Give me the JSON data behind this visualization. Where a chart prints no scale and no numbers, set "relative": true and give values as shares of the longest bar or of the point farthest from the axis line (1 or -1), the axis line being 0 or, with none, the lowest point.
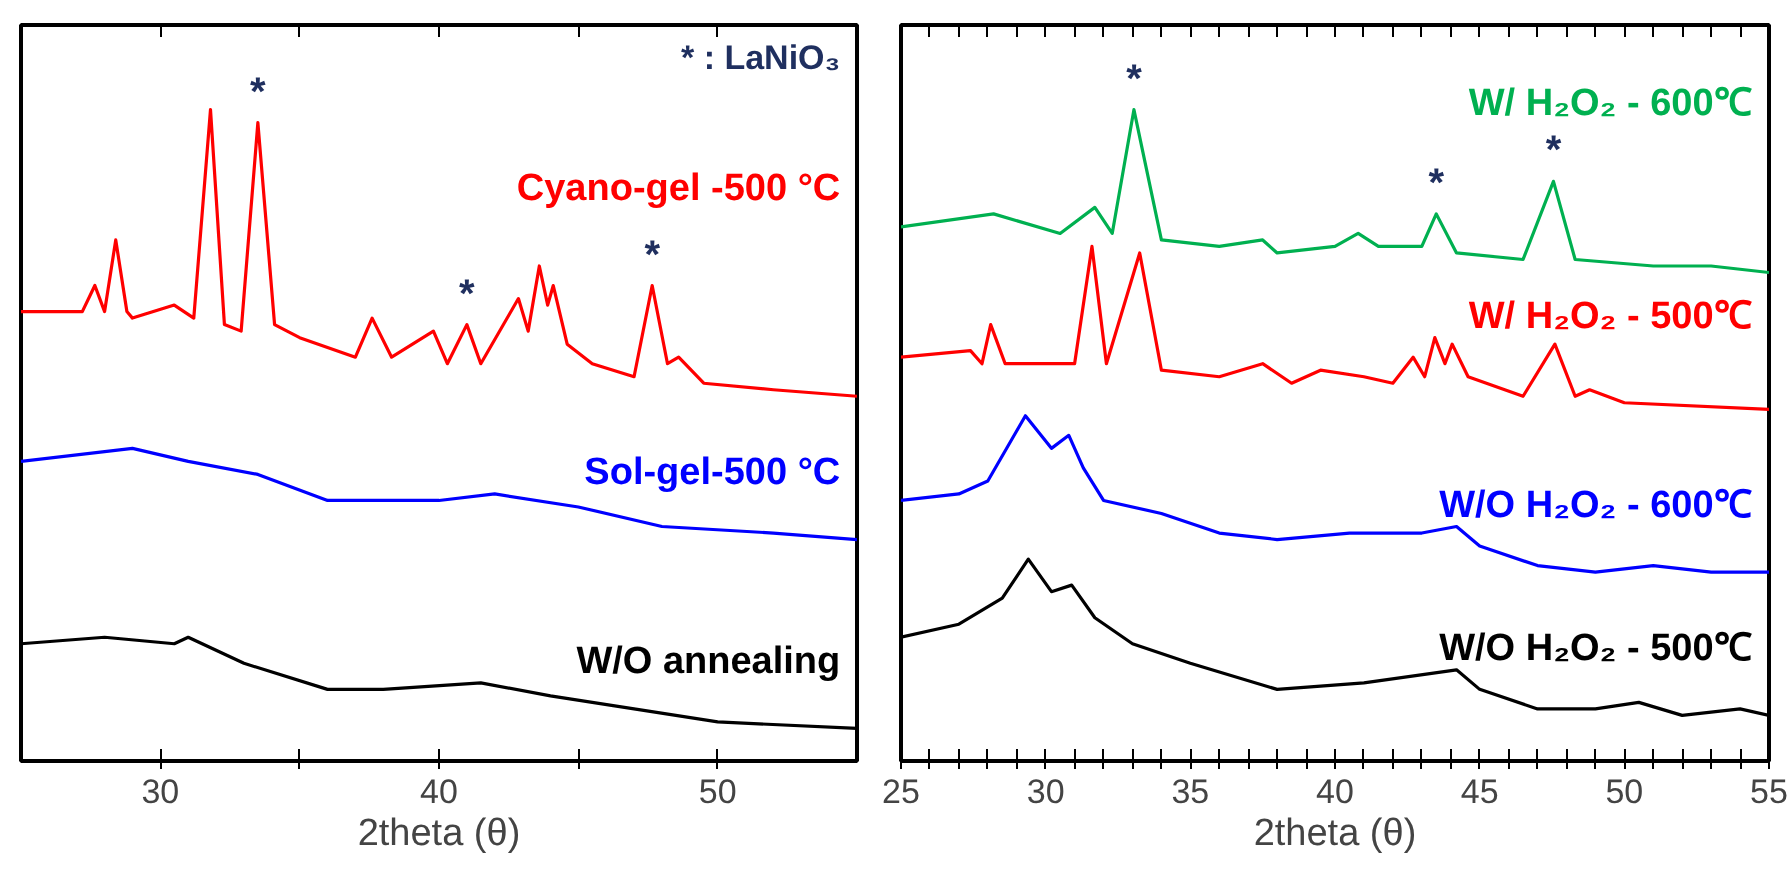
{
  "chart_data": [
    {
      "type": "line",
      "xlabel": "2theta (θ)",
      "relative": true,
      "xlim": [
        25,
        55
      ],
      "xticks": [
        30,
        {
          "value": 35,
          "label": null
        },
        40,
        {
          "value": 45,
          "label": null
        },
        50
      ],
      "tick_labels": "x",
      "grid": false,
      "annotations": [
        "* : LaNiO₃",
        {
          "text": "*",
          "x": 33.5,
          "y": 0.98
        },
        {
          "text": "*",
          "x": 41.0,
          "y": 0.67
        },
        {
          "text": "*",
          "x": 47.65,
          "y": 0.73
        }
      ],
      "series": [
        {
          "name": "Cyano-gel -500 °C",
          "color": "#ff0000",
          "x": [
            25,
            27.2,
            27.65,
            28.0,
            28.4,
            28.8,
            29.0,
            30.5,
            31.2,
            31.8,
            32.3,
            32.9,
            33.5,
            34.1,
            35,
            37,
            37.6,
            38.3,
            39.8,
            40.3,
            41.0,
            41.5,
            42.85,
            43.2,
            43.6,
            43.9,
            44.1,
            44.6,
            45.5,
            47,
            47.65,
            48.2,
            48.6,
            49.5,
            52,
            55
          ],
          "values": [
            0.69,
            0.69,
            0.73,
            0.69,
            0.8,
            0.69,
            0.68,
            0.7,
            0.68,
            1.0,
            0.67,
            0.66,
            0.98,
            0.67,
            0.65,
            0.62,
            0.68,
            0.62,
            0.66,
            0.61,
            0.67,
            0.61,
            0.71,
            0.66,
            0.76,
            0.7,
            0.73,
            0.64,
            0.61,
            0.59,
            0.73,
            0.61,
            0.62,
            0.58,
            0.57,
            0.56
          ]
        },
        {
          "name": "Sol-gel-500 °C",
          "color": "#0000ff",
          "x": [
            25,
            29,
            31,
            33.5,
            36,
            40,
            42,
            45,
            48,
            52,
            55
          ],
          "values": [
            0.46,
            0.48,
            0.46,
            0.44,
            0.4,
            0.4,
            0.41,
            0.39,
            0.36,
            0.35,
            0.34
          ]
        },
        {
          "name": "W/O annealing",
          "color": "#000000",
          "x": [
            25,
            28,
            30.5,
            31,
            33,
            36,
            38,
            41.5,
            44,
            47,
            50,
            55
          ],
          "values": [
            0.18,
            0.19,
            0.18,
            0.19,
            0.15,
            0.11,
            0.11,
            0.12,
            0.1,
            0.08,
            0.06,
            0.05
          ]
        }
      ]
    },
    {
      "type": "line",
      "xlabel": "2theta (θ)",
      "relative": true,
      "xlim": [
        25,
        55
      ],
      "xticks": [
        25,
        {
          "value": 26,
          "label": null
        },
        {
          "value": 27,
          "label": null
        },
        {
          "value": 28,
          "label": null
        },
        {
          "value": 29,
          "label": null
        },
        30,
        {
          "value": 31,
          "label": null
        },
        {
          "value": 32,
          "label": null
        },
        {
          "value": 33,
          "label": null
        },
        {
          "value": 34,
          "label": null
        },
        35,
        {
          "value": 36,
          "label": null
        },
        {
          "value": 37,
          "label": null
        },
        {
          "value": 38,
          "label": null
        },
        {
          "value": 39,
          "label": null
        },
        40,
        {
          "value": 41,
          "label": null
        },
        {
          "value": 42,
          "label": null
        },
        {
          "value": 43,
          "label": null
        },
        {
          "value": 44,
          "label": null
        },
        45,
        {
          "value": 46,
          "label": null
        },
        {
          "value": 47,
          "label": null
        },
        {
          "value": 48,
          "label": null
        },
        {
          "value": 49,
          "label": null
        },
        50,
        {
          "value": 51,
          "label": null
        },
        {
          "value": 52,
          "label": null
        },
        {
          "value": 53,
          "label": null
        },
        {
          "value": 54,
          "label": null
        },
        55
      ],
      "tick_labels": "x",
      "grid": false,
      "annotations": [
        {
          "text": "*",
          "x": 33.05,
          "y": 1.0
        },
        {
          "text": "*",
          "x": 43.5,
          "y": 0.84
        },
        {
          "text": "*",
          "x": 47.55,
          "y": 0.89
        }
      ],
      "series": [
        {
          "name": "W/ H₂O₂ - 600℃",
          "color": "#00b050",
          "x": [
            25,
            28.2,
            30.5,
            31.7,
            32.3,
            33.05,
            34,
            36,
            37.5,
            38,
            40,
            40.8,
            41.5,
            43,
            43.5,
            44.2,
            46.5,
            47.55,
            48.3,
            51,
            53,
            55
          ],
          "values": [
            0.82,
            0.84,
            0.81,
            0.85,
            0.81,
            1.0,
            0.8,
            0.79,
            0.8,
            0.78,
            0.79,
            0.81,
            0.79,
            0.79,
            0.84,
            0.78,
            0.77,
            0.89,
            0.77,
            0.76,
            0.76,
            0.75
          ]
        },
        {
          "name": "W/ H₂O₂ - 500℃",
          "color": "#ff0000",
          "x": [
            25,
            27.4,
            27.8,
            28.1,
            28.6,
            31.0,
            31.6,
            32.1,
            33.25,
            34,
            36,
            37.5,
            38.5,
            39.5,
            41,
            42,
            42.7,
            43.1,
            43.45,
            43.8,
            44.05,
            44.6,
            46.5,
            47.6,
            48.3,
            48.8,
            50,
            55
          ],
          "values": [
            0.62,
            0.63,
            0.61,
            0.67,
            0.61,
            0.61,
            0.79,
            0.61,
            0.78,
            0.6,
            0.59,
            0.61,
            0.58,
            0.6,
            0.59,
            0.58,
            0.62,
            0.59,
            0.65,
            0.61,
            0.64,
            0.59,
            0.56,
            0.64,
            0.56,
            0.57,
            0.55,
            0.54
          ]
        },
        {
          "name": "W/O H₂O₂ - 600℃",
          "color": "#0000ff",
          "x": [
            25,
            27,
            28,
            29.3,
            30.2,
            30.8,
            31.3,
            32,
            34,
            36,
            38,
            40.5,
            43,
            44.2,
            45,
            47,
            49,
            51,
            53,
            55
          ],
          "values": [
            0.4,
            0.41,
            0.43,
            0.53,
            0.48,
            0.5,
            0.45,
            0.4,
            0.38,
            0.35,
            0.34,
            0.35,
            0.35,
            0.36,
            0.33,
            0.3,
            0.29,
            0.3,
            0.29,
            0.29
          ]
        },
        {
          "name": "W/O H₂O₂ - 500℃",
          "color": "#000000",
          "x": [
            25,
            27,
            28.5,
            29.4,
            30.2,
            30.9,
            31.7,
            33,
            35,
            38,
            41,
            44.2,
            45,
            47,
            49,
            50.5,
            52,
            54,
            55
          ],
          "values": [
            0.19,
            0.21,
            0.25,
            0.31,
            0.26,
            0.27,
            0.22,
            0.18,
            0.15,
            0.11,
            0.12,
            0.14,
            0.11,
            0.08,
            0.08,
            0.09,
            0.07,
            0.08,
            0.07
          ]
        }
      ]
    }
  ]
}
